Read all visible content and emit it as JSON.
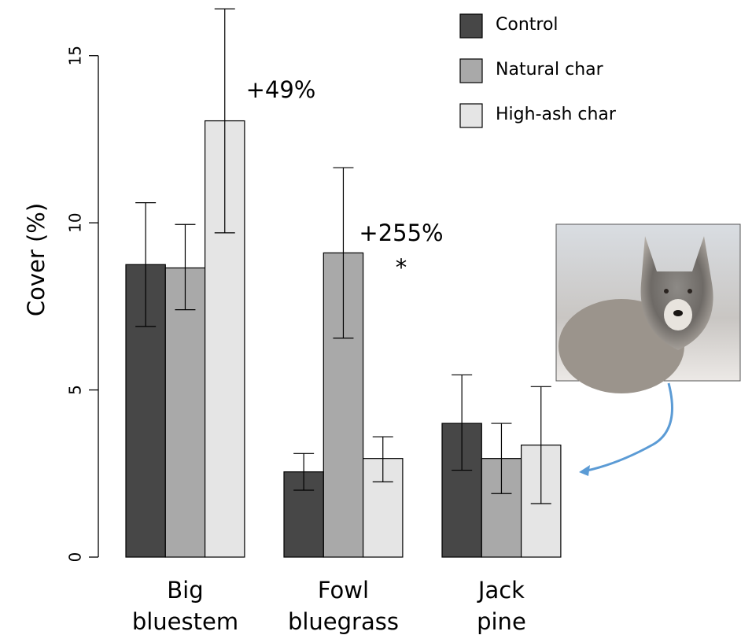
{
  "chart_data": {
    "type": "bar",
    "y_label": "Cover (%)",
    "categories": [
      "Big bluestem",
      "Fowl bluegrass",
      "Jack pine"
    ],
    "series": [
      {
        "name": "Control",
        "color": "#474747",
        "values": [
          8.75,
          2.55,
          4.0
        ],
        "lower": [
          6.9,
          2.0,
          2.6
        ],
        "upper": [
          10.6,
          3.1,
          5.45
        ]
      },
      {
        "name": "Natural char",
        "color": "#a9a9a9",
        "values": [
          8.65,
          9.1,
          2.95
        ],
        "lower": [
          7.4,
          6.55,
          1.9
        ],
        "upper": [
          9.95,
          11.65,
          4.0
        ]
      },
      {
        "name": "High-ash char",
        "color": "#e5e5e5",
        "values": [
          13.05,
          2.95,
          3.35
        ],
        "lower": [
          9.7,
          2.25,
          1.6
        ],
        "upper": [
          16.4,
          3.6,
          5.1
        ]
      }
    ],
    "ylim": [
      0,
      16.5
    ],
    "yticks": [
      0,
      5,
      10,
      15
    ],
    "annotations": [
      "+49%",
      "+255%",
      "*"
    ]
  }
}
